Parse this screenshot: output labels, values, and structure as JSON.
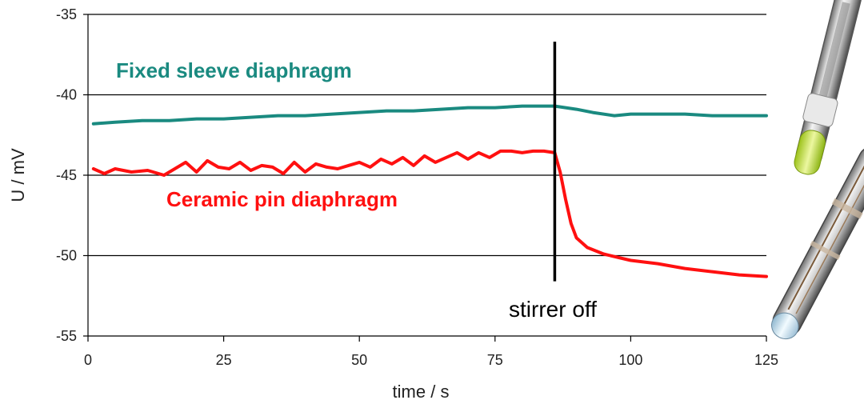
{
  "chart_data": {
    "type": "line",
    "xlabel": "time / s",
    "ylabel": "U / mV",
    "xlim": [
      0,
      125
    ],
    "ylim": [
      -55,
      -35
    ],
    "xticks": [
      "0",
      "25",
      "50",
      "75",
      "100",
      "125"
    ],
    "yticks": [
      "-35",
      "-40",
      "-45",
      "-50",
      "-55"
    ],
    "grid": "horizontal",
    "series": [
      {
        "name": "Fixed sleeve diaphragm",
        "color": "#1a8a80",
        "x": [
          1,
          5,
          10,
          15,
          20,
          25,
          30,
          35,
          40,
          45,
          50,
          55,
          60,
          65,
          70,
          75,
          80,
          84,
          86,
          88,
          90,
          93,
          97,
          100,
          105,
          110,
          115,
          120,
          125
        ],
        "y": [
          -41.8,
          -41.7,
          -41.6,
          -41.6,
          -41.5,
          -41.5,
          -41.4,
          -41.3,
          -41.3,
          -41.2,
          -41.1,
          -41.0,
          -41.0,
          -40.9,
          -40.8,
          -40.8,
          -40.7,
          -40.7,
          -40.7,
          -40.8,
          -40.9,
          -41.1,
          -41.3,
          -41.2,
          -41.2,
          -41.2,
          -41.3,
          -41.3,
          -41.3
        ]
      },
      {
        "name": "Ceramic pin diaphragm",
        "color": "#ff1010",
        "x": [
          1,
          3,
          5,
          8,
          11,
          14,
          16,
          18,
          20,
          22,
          24,
          26,
          28,
          30,
          32,
          34,
          36,
          38,
          40,
          42,
          44,
          46,
          48,
          50,
          52,
          54,
          56,
          58,
          60,
          62,
          64,
          66,
          68,
          70,
          72,
          74,
          76,
          78,
          80,
          82,
          84,
          86,
          87,
          88,
          89,
          90,
          92,
          95,
          100,
          105,
          110,
          115,
          120,
          125
        ],
        "y": [
          -44.6,
          -44.9,
          -44.6,
          -44.8,
          -44.7,
          -45.0,
          -44.6,
          -44.2,
          -44.8,
          -44.1,
          -44.5,
          -44.6,
          -44.2,
          -44.7,
          -44.4,
          -44.5,
          -44.9,
          -44.2,
          -44.8,
          -44.3,
          -44.5,
          -44.6,
          -44.4,
          -44.2,
          -44.5,
          -44.0,
          -44.3,
          -43.9,
          -44.4,
          -43.8,
          -44.2,
          -43.9,
          -43.6,
          -44.0,
          -43.6,
          -43.9,
          -43.5,
          -43.5,
          -43.6,
          -43.5,
          -43.5,
          -43.6,
          -44.8,
          -46.5,
          -48.0,
          -48.9,
          -49.5,
          -49.9,
          -50.3,
          -50.5,
          -50.8,
          -51.0,
          -51.2,
          -51.3
        ]
      }
    ],
    "annotations": {
      "event_text": "stirrer off",
      "event_x": 86,
      "event_y_top": -36.7,
      "event_y_bottom": -51.6
    }
  }
}
